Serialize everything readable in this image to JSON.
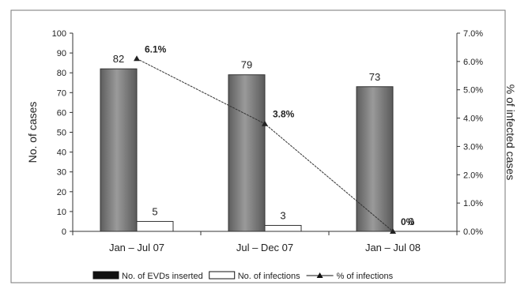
{
  "chart_data": {
    "type": "bar",
    "categories": [
      "Jan – Jul 07",
      "Jul – Dec 07",
      "Jan – Jul 08"
    ],
    "series": [
      {
        "name": "No. of EVDs inserted",
        "kind": "bar",
        "axis": "left",
        "values": [
          82,
          79,
          73
        ],
        "color": "#7a7a7a",
        "labels": [
          "82",
          "79",
          "73"
        ]
      },
      {
        "name": "No. of infections",
        "kind": "bar",
        "axis": "left",
        "values": [
          5,
          3,
          0
        ],
        "color": "#ffffff",
        "labels": [
          "5",
          "3",
          "0"
        ]
      },
      {
        "name": "% of infections",
        "kind": "line",
        "axis": "right",
        "values": [
          6.1,
          3.8,
          0
        ],
        "color": "#333333",
        "labels": [
          "6.1%",
          "3.8%",
          "0%"
        ]
      }
    ],
    "ylabel": "No. of cases",
    "y2label": "% of infected cases",
    "ylim": [
      0,
      100
    ],
    "y2lim": [
      0,
      7
    ],
    "yticks": [
      "0",
      "10",
      "20",
      "30",
      "40",
      "50",
      "60",
      "70",
      "80",
      "90",
      "100"
    ],
    "y2ticks": [
      "0.0%",
      "1.0%",
      "2.0%",
      "3.0%",
      "4.0%",
      "5.0%",
      "6.0%",
      "7.0%"
    ],
    "grid": false,
    "legend_position": "bottom"
  }
}
